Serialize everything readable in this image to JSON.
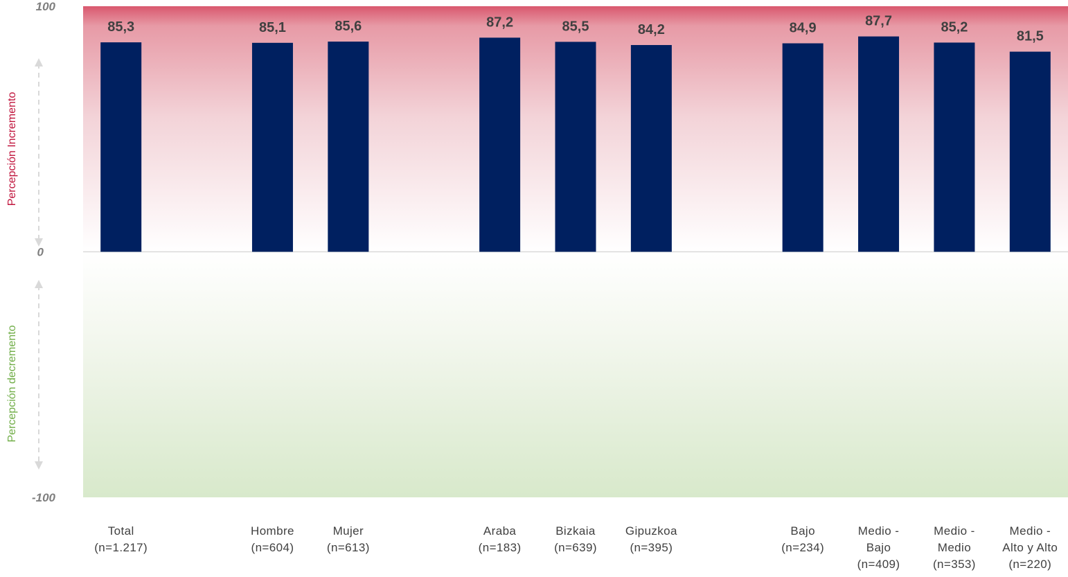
{
  "colors": {
    "bar": "#002060",
    "top_band": "#d9586e",
    "bottom_band": "#d8e9cb",
    "increase_label": "#c0143c",
    "decrease_label": "#70ad47",
    "arrow": "#d9d9d9",
    "zero_line": "#d9d9d9"
  },
  "chart_data": {
    "type": "bar",
    "ylim": [
      -100,
      100
    ],
    "yticks": [
      "100",
      "0",
      "-100"
    ],
    "background": "gradient: red toward +100, green toward -100",
    "increase_label": "Percepción Incremento",
    "decrease_label": "Percepción decremento",
    "categories": [
      {
        "lines": [
          "Total",
          "(n=1.217)"
        ],
        "value": 85.3,
        "label": "85,3"
      },
      {
        "lines": [
          "Hombre",
          "(n=604)"
        ],
        "value": 85.1,
        "label": "85,1"
      },
      {
        "lines": [
          "Mujer",
          "(n=613)"
        ],
        "value": 85.6,
        "label": "85,6"
      },
      {
        "lines": [
          "Araba",
          "(n=183)"
        ],
        "value": 87.2,
        "label": "87,2"
      },
      {
        "lines": [
          "Bizkaia",
          "(n=639)"
        ],
        "value": 85.5,
        "label": "85,5"
      },
      {
        "lines": [
          "Gipuzkoa",
          "(n=395)"
        ],
        "value": 84.2,
        "label": "84,2"
      },
      {
        "lines": [
          "Bajo",
          "(n=234)"
        ],
        "value": 84.9,
        "label": "84,9"
      },
      {
        "lines": [
          "Medio -",
          "Bajo",
          "(n=409)"
        ],
        "value": 87.7,
        "label": "87,7"
      },
      {
        "lines": [
          "Medio -",
          "Medio",
          "(n=353)"
        ],
        "value": 85.2,
        "label": "85,2"
      },
      {
        "lines": [
          "Medio -",
          "Alto y Alto",
          "(n=220)"
        ],
        "value": 81.5,
        "label": "81,5"
      }
    ]
  }
}
